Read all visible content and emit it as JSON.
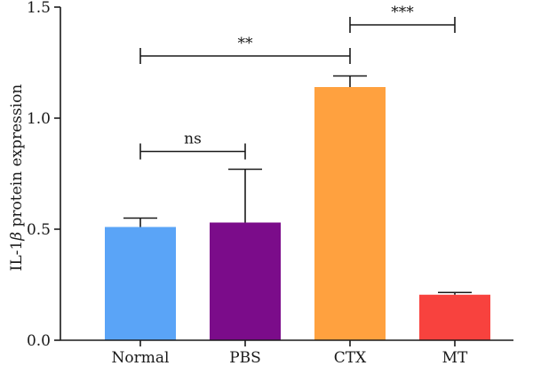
{
  "chart_data": {
    "type": "bar",
    "categories": [
      "Normal",
      "PBS",
      "CTX",
      "MT"
    ],
    "values": [
      0.51,
      0.53,
      1.14,
      0.205
    ],
    "errors": [
      0.04,
      0.24,
      0.05,
      0.01
    ],
    "colors": [
      "#5aa4f7",
      "#7b0c8a",
      "#ffa13f",
      "#f8423e"
    ],
    "ylabel_prefix": "IL-1",
    "ylabel_symbol": "β",
    "ylabel_suffix": " protein expression",
    "ylim": [
      0.0,
      1.5
    ],
    "yticks": [
      0.0,
      0.5,
      1.0,
      1.5
    ],
    "ytick_labels": [
      "0.0",
      "0.5",
      "1.0",
      "1.5"
    ],
    "annotations": [
      {
        "from": 0,
        "to": 1,
        "label": "ns",
        "y": 0.85
      },
      {
        "from": 0,
        "to": 2,
        "label": "**",
        "y": 1.28
      },
      {
        "from": 2,
        "to": 3,
        "label": "***",
        "y": 1.42
      }
    ]
  }
}
